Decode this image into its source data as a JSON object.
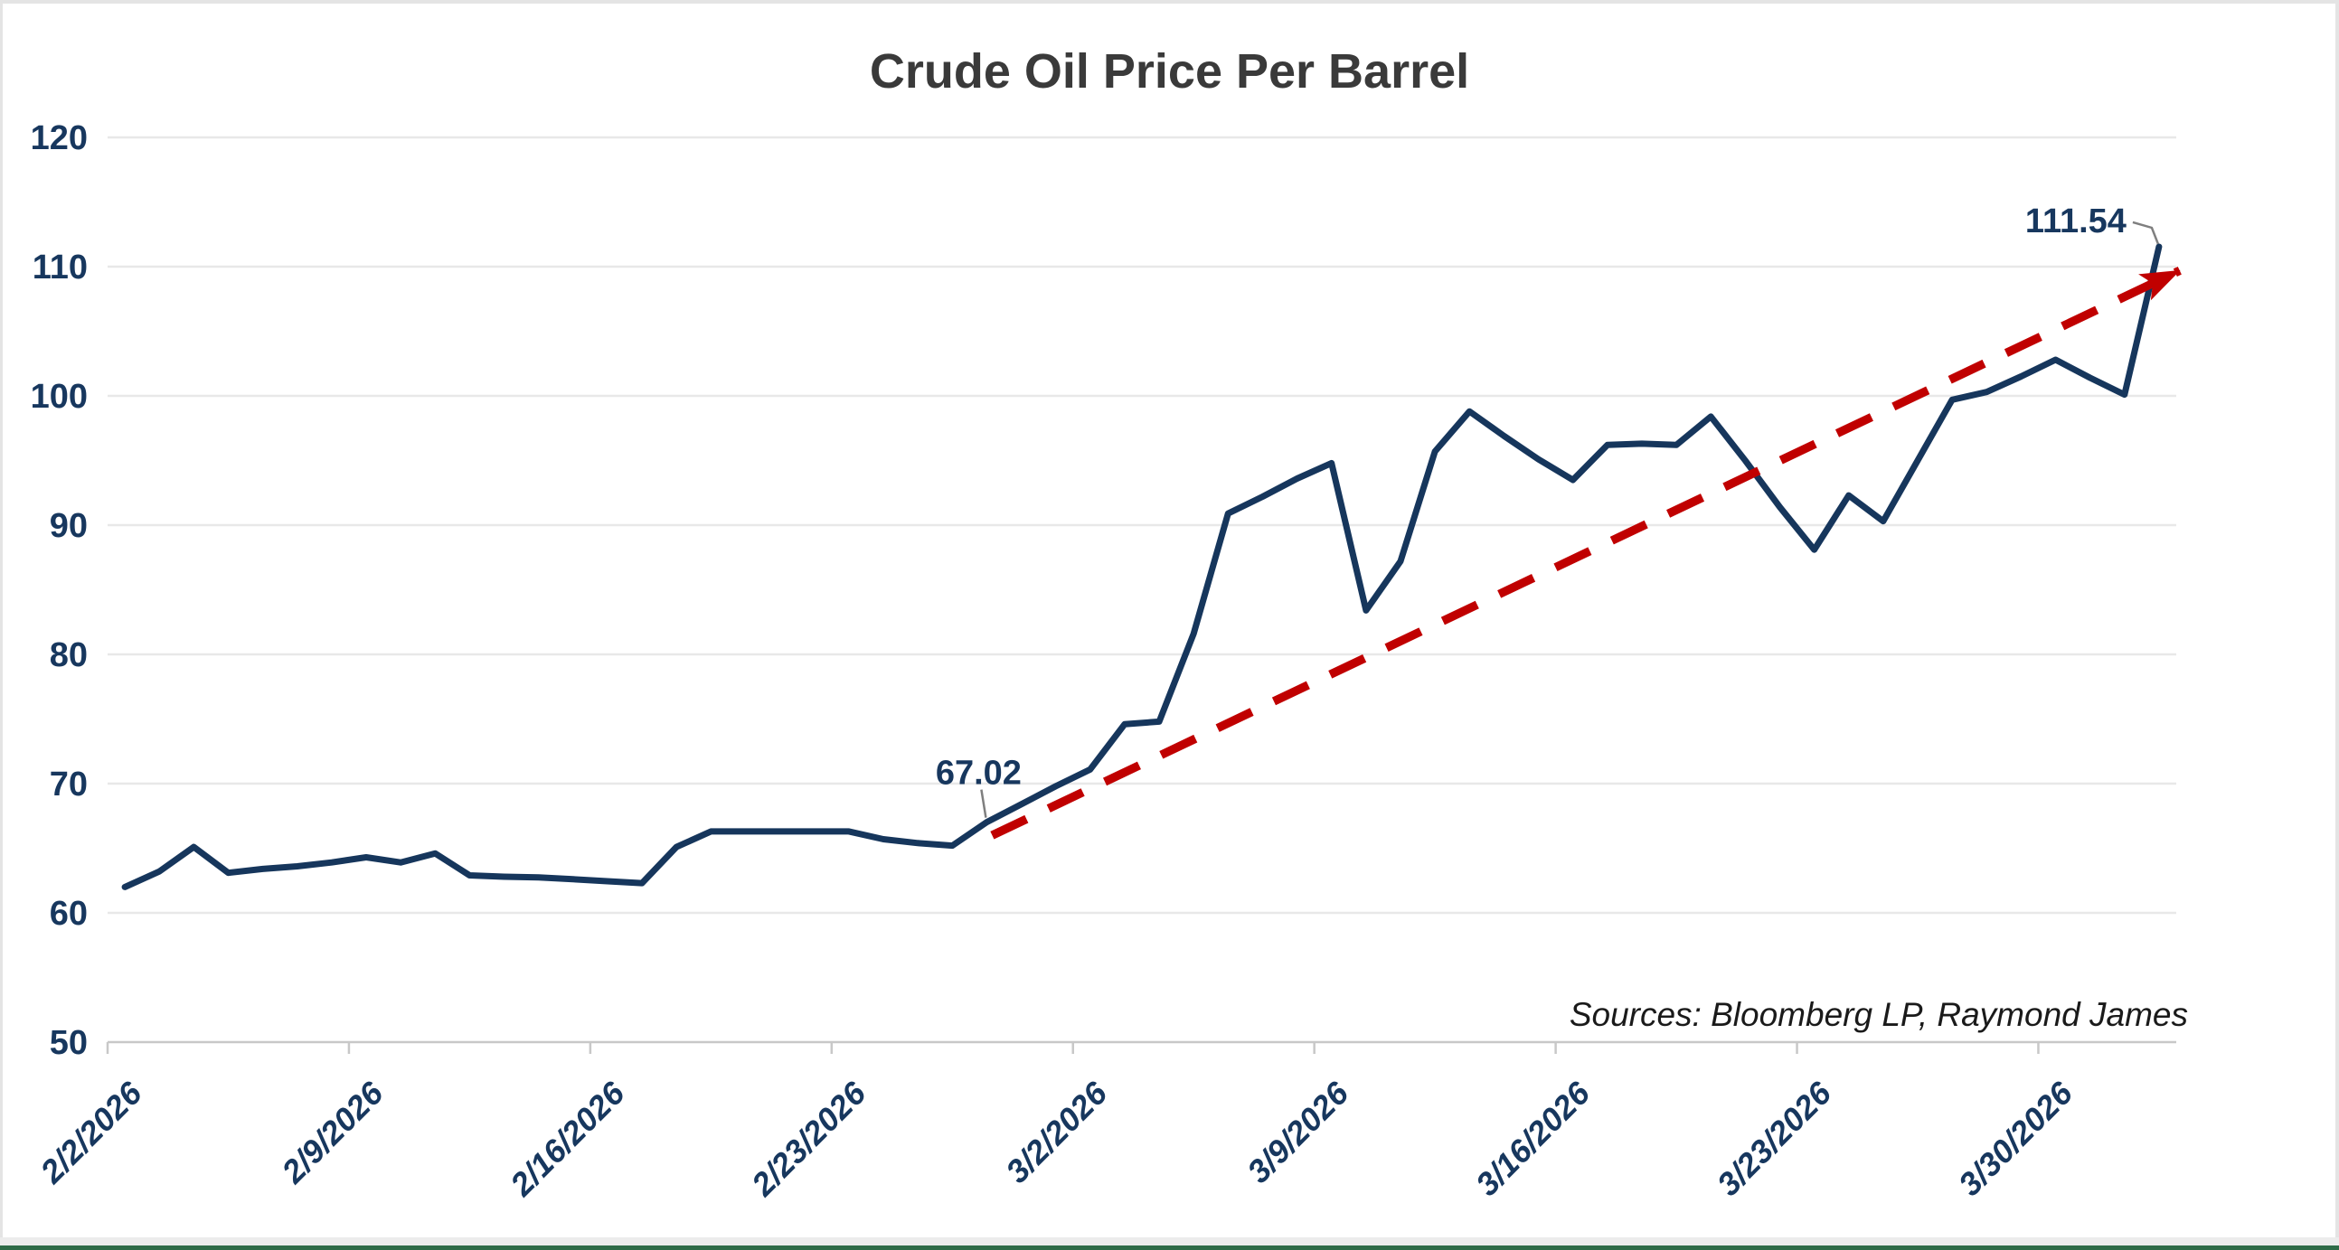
{
  "page": {
    "background": "#FFFFFF",
    "border_color": "#E4E4E4",
    "bottom_strip_color": "#ECECEC",
    "bottom_bar_color": "#2E6B47"
  },
  "chart_data": {
    "type": "line",
    "title": "Crude Oil Price Per Barrel",
    "title_color": "#3A3A3A",
    "xlabel": "",
    "ylabel": "",
    "ylim": [
      50,
      120
    ],
    "y_ticks": [
      50,
      60,
      70,
      80,
      90,
      100,
      110,
      120
    ],
    "x_tick_labels": [
      "2/2/2026",
      "2/9/2026",
      "2/16/2026",
      "2/23/2026",
      "3/2/2026",
      "3/9/2026",
      "3/16/2026",
      "3/23/2026",
      "3/30/2026"
    ],
    "x_tick_interval_days": 7,
    "grid": true,
    "legend": false,
    "gridline_color": "#E8E8E8",
    "axis_line_color": "#C8C8C8",
    "axis_label_color": "#17375E",
    "series": [
      {
        "name": "Crude Oil Price Per Barrel",
        "color": "#16365C",
        "dates": [
          "2/2/2026",
          "2/3/2026",
          "2/4/2026",
          "2/5/2026",
          "2/6/2026",
          "2/7/2026",
          "2/8/2026",
          "2/9/2026",
          "2/10/2026",
          "2/11/2026",
          "2/12/2026",
          "2/13/2026",
          "2/14/2026",
          "2/15/2026",
          "2/16/2026",
          "2/17/2026",
          "2/18/2026",
          "2/19/2026",
          "2/20/2026",
          "2/21/2026",
          "2/22/2026",
          "2/23/2026",
          "2/24/2026",
          "2/25/2026",
          "2/26/2026",
          "2/27/2026",
          "2/28/2026",
          "3/1/2026",
          "3/2/2026",
          "3/3/2026",
          "3/4/2026",
          "3/5/2026",
          "3/6/2026",
          "3/7/2026",
          "3/8/2026",
          "3/9/2026",
          "3/10/2026",
          "3/11/2026",
          "3/12/2026",
          "3/13/2026",
          "3/14/2026",
          "3/15/2026",
          "3/16/2026",
          "3/17/2026",
          "3/18/2026",
          "3/19/2026",
          "3/20/2026",
          "3/21/2026",
          "3/22/2026",
          "3/23/2026",
          "3/24/2026",
          "3/25/2026",
          "3/26/2026",
          "3/27/2026",
          "3/28/2026",
          "3/29/2026",
          "3/30/2026",
          "3/31/2026",
          "4/1/2026",
          "4/2/2026"
        ],
        "values": [
          62.0,
          63.2,
          65.1,
          63.1,
          63.4,
          63.6,
          63.9,
          64.3,
          63.9,
          64.6,
          62.9,
          62.8,
          62.75,
          62.6,
          62.45,
          62.3,
          65.1,
          66.3,
          66.3,
          66.3,
          66.3,
          66.3,
          65.7,
          65.4,
          65.2,
          67.02,
          68.4,
          69.8,
          71.1,
          74.6,
          74.8,
          81.6,
          90.9,
          92.2,
          93.6,
          94.8,
          83.4,
          87.2,
          95.7,
          98.8,
          96.9,
          95.1,
          93.5,
          96.2,
          96.3,
          96.2,
          98.4,
          95.0,
          91.4,
          88.1,
          92.3,
          90.3,
          95.0,
          99.7,
          100.3,
          101.5,
          102.8,
          101.4,
          100.1,
          111.54
        ]
      }
    ],
    "annotations": [
      {
        "text": "67.02",
        "index": 25,
        "value": 67.02,
        "placement": "above"
      },
      {
        "text": "111.54",
        "index": 59,
        "value": 111.54,
        "placement": "left"
      }
    ],
    "annotation_color": "#17375E",
    "leader_line_color": "#7F7F7F",
    "trendline": {
      "style": "dashed",
      "arrow": true,
      "color": "#C00000",
      "from": {
        "index": 25,
        "value": 66.0
      },
      "to": {
        "index": 59.6,
        "value": 109.7
      }
    },
    "source_note": "Sources: Bloomberg LP, Raymond James"
  }
}
